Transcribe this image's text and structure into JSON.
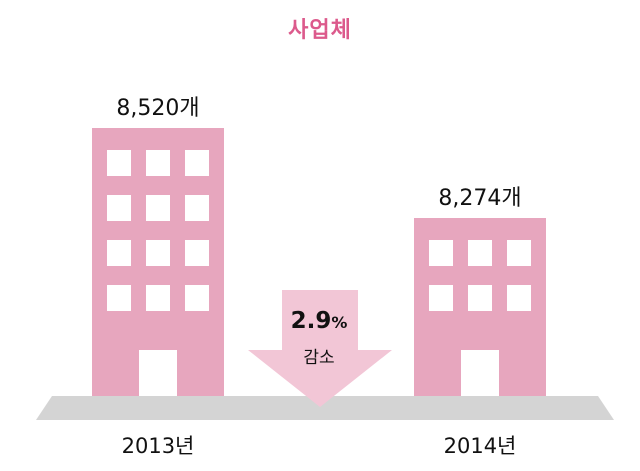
{
  "title": "사업체",
  "colors": {
    "building": "#e7a6be",
    "window": "#ffffff",
    "ground": "#d4d4d4",
    "title": "#dc5a8c"
  },
  "chart_data": {
    "type": "bar",
    "title": "사업체",
    "categories": [
      "2013년",
      "2014년"
    ],
    "values": [
      8520,
      8274
    ],
    "value_labels": [
      "8,520개",
      "8,274개"
    ],
    "unit": "개",
    "change": {
      "percent": "2.9",
      "unit": "%",
      "direction": "감소"
    }
  }
}
